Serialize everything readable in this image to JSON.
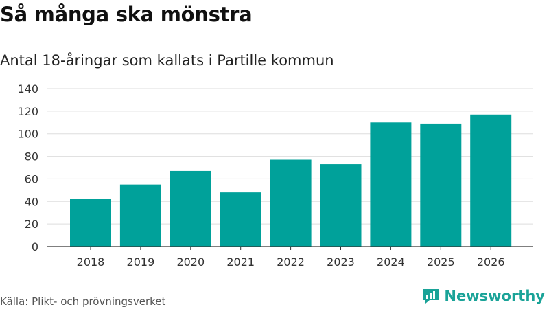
{
  "title": "Så många ska mönstra",
  "subtitle": "Antal 18-åringar som kallats i Partille kommun",
  "source": "Källa: Plikt- och prövningsverket",
  "brand": {
    "name": "Newsworthy",
    "icon": "newsworthy-logo-icon"
  },
  "colors": {
    "bar": "#00a19a",
    "grid": "#dddddd",
    "axis": "#333333",
    "brand": "#1aa398"
  },
  "chart_data": {
    "type": "bar",
    "title": "Så många ska mönstra",
    "subtitle": "Antal 18-åringar som kallats i Partille kommun",
    "categories": [
      "2018",
      "2019",
      "2020",
      "2021",
      "2022",
      "2023",
      "2024",
      "2025",
      "2026"
    ],
    "values": [
      42,
      55,
      67,
      48,
      77,
      73,
      110,
      109,
      117
    ],
    "xlabel": "",
    "ylabel": "",
    "ylim": [
      0,
      140
    ],
    "yticks": [
      0,
      20,
      40,
      60,
      80,
      100,
      120,
      140
    ],
    "grid": true,
    "legend": "none"
  }
}
